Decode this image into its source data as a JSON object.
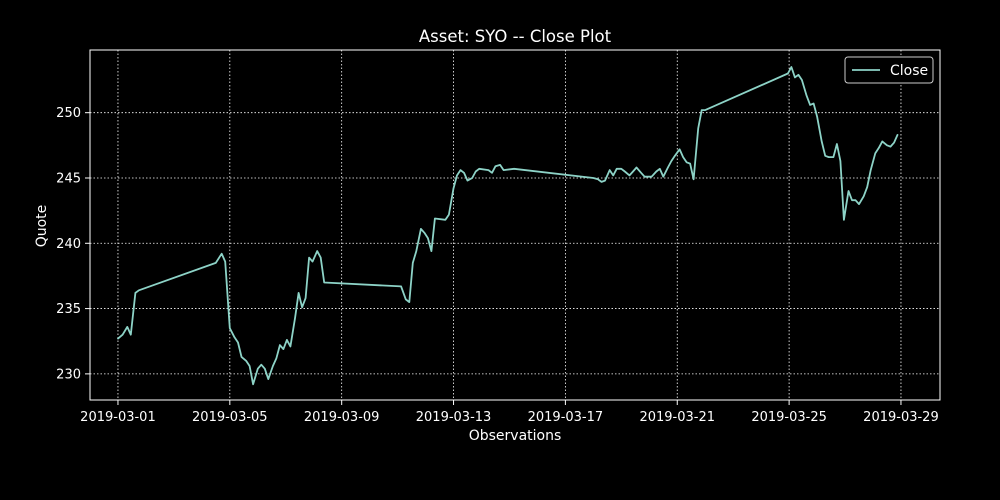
{
  "chart_data": {
    "type": "line",
    "title": "Asset: SYO -- Close Plot",
    "xlabel": "Observations",
    "ylabel": "Quote",
    "x_tick_labels": [
      "2019-03-01",
      "2019-03-05",
      "2019-03-09",
      "2019-03-13",
      "2019-03-17",
      "2019-03-21",
      "2019-03-25",
      "2019-03-29"
    ],
    "y_tick_labels": [
      "230",
      "235",
      "240",
      "245",
      "250"
    ],
    "xlim": [
      "2019-02-28 00:00",
      "2019-03-30 09:30"
    ],
    "ylim": [
      228,
      254.8
    ],
    "grid": true,
    "legend_position": "top-right",
    "colors": {
      "background": "#000000",
      "line": "#8dd3c7",
      "grid": "#ffffff",
      "text": "#ffffff"
    },
    "series": [
      {
        "name": "Close",
        "points": [
          [
            "2019-03-01 00:00",
            232.7
          ],
          [
            "2019-03-01 04:00",
            233.0
          ],
          [
            "2019-03-01 08:00",
            233.6
          ],
          [
            "2019-03-01 11:00",
            233.0
          ],
          [
            "2019-03-01 15:00",
            236.2
          ],
          [
            "2019-03-01 18:00",
            236.4
          ],
          [
            "2019-03-04 12:00",
            238.5
          ],
          [
            "2019-03-04 17:00",
            239.2
          ],
          [
            "2019-03-04 20:00",
            238.6
          ],
          [
            "2019-03-05 00:00",
            233.5
          ],
          [
            "2019-03-05 04:00",
            232.8
          ],
          [
            "2019-03-05 07:00",
            232.4
          ],
          [
            "2019-03-05 10:00",
            231.3
          ],
          [
            "2019-03-05 14:00",
            231.0
          ],
          [
            "2019-03-05 17:00",
            230.6
          ],
          [
            "2019-03-05 20:00",
            229.2
          ],
          [
            "2019-03-06 00:00",
            230.4
          ],
          [
            "2019-03-06 03:00",
            230.7
          ],
          [
            "2019-03-06 06:00",
            230.4
          ],
          [
            "2019-03-06 09:00",
            229.6
          ],
          [
            "2019-03-06 13:00",
            230.6
          ],
          [
            "2019-03-06 16:00",
            231.2
          ],
          [
            "2019-03-06 19:00",
            232.2
          ],
          [
            "2019-03-06 22:00",
            231.9
          ],
          [
            "2019-03-07 01:00",
            232.6
          ],
          [
            "2019-03-07 04:00",
            232.1
          ],
          [
            "2019-03-07 08:00",
            234.3
          ],
          [
            "2019-03-07 11:00",
            236.2
          ],
          [
            "2019-03-07 14:00",
            235.1
          ],
          [
            "2019-03-07 17:00",
            235.8
          ],
          [
            "2019-03-07 20:00",
            238.9
          ],
          [
            "2019-03-07 23:00",
            238.6
          ],
          [
            "2019-03-08 03:00",
            239.4
          ],
          [
            "2019-03-08 06:00",
            238.9
          ],
          [
            "2019-03-08 09:00",
            237.0
          ],
          [
            "2019-03-11 03:00",
            236.7
          ],
          [
            "2019-03-11 07:00",
            235.7
          ],
          [
            "2019-03-11 10:00",
            235.5
          ],
          [
            "2019-03-11 13:00",
            238.5
          ],
          [
            "2019-03-11 16:00",
            239.4
          ],
          [
            "2019-03-11 20:00",
            241.1
          ],
          [
            "2019-03-11 23:00",
            240.8
          ],
          [
            "2019-03-12 02:00",
            240.4
          ],
          [
            "2019-03-12 05:00",
            239.4
          ],
          [
            "2019-03-12 08:00",
            241.9
          ],
          [
            "2019-03-12 17:00",
            241.8
          ],
          [
            "2019-03-12 20:00",
            242.2
          ],
          [
            "2019-03-13 00:00",
            244.2
          ],
          [
            "2019-03-13 03:00",
            245.2
          ],
          [
            "2019-03-13 06:00",
            245.6
          ],
          [
            "2019-03-13 09:00",
            245.4
          ],
          [
            "2019-03-13 12:00",
            244.8
          ],
          [
            "2019-03-13 16:00",
            245.0
          ],
          [
            "2019-03-13 19:00",
            245.5
          ],
          [
            "2019-03-13 22:00",
            245.7
          ],
          [
            "2019-03-14 06:00",
            245.6
          ],
          [
            "2019-03-14 09:00",
            245.4
          ],
          [
            "2019-03-14 12:00",
            245.9
          ],
          [
            "2019-03-14 16:00",
            246.0
          ],
          [
            "2019-03-14 19:00",
            245.6
          ],
          [
            "2019-03-15 04:00",
            245.7
          ],
          [
            "2019-03-18 00:00",
            245.0
          ],
          [
            "2019-03-18 04:00",
            244.9
          ],
          [
            "2019-03-18 07:00",
            244.7
          ],
          [
            "2019-03-18 10:00",
            244.8
          ],
          [
            "2019-03-18 14:00",
            245.6
          ],
          [
            "2019-03-18 17:00",
            245.2
          ],
          [
            "2019-03-18 20:00",
            245.7
          ],
          [
            "2019-03-19 00:00",
            245.7
          ],
          [
            "2019-03-19 03:00",
            245.5
          ],
          [
            "2019-03-19 07:00",
            245.2
          ],
          [
            "2019-03-19 10:00",
            245.5
          ],
          [
            "2019-03-19 13:00",
            245.8
          ],
          [
            "2019-03-19 17:00",
            245.4
          ],
          [
            "2019-03-19 20:00",
            245.1
          ],
          [
            "2019-03-20 02:00",
            245.1
          ],
          [
            "2019-03-20 06:00",
            245.5
          ],
          [
            "2019-03-20 09:00",
            245.7
          ],
          [
            "2019-03-20 12:00",
            245.1
          ],
          [
            "2019-03-20 16:00",
            245.8
          ],
          [
            "2019-03-20 19:00",
            246.3
          ],
          [
            "2019-03-20 22:00",
            246.7
          ],
          [
            "2019-03-21 02:00",
            247.2
          ],
          [
            "2019-03-21 05:00",
            246.6
          ],
          [
            "2019-03-21 08:00",
            246.2
          ],
          [
            "2019-03-21 11:00",
            246.1
          ],
          [
            "2019-03-21 14:00",
            244.9
          ],
          [
            "2019-03-21 18:00",
            248.8
          ],
          [
            "2019-03-21 21:00",
            250.2
          ],
          [
            "2019-03-22 00:00",
            250.2
          ],
          [
            "2019-03-24 23:00",
            253.0
          ],
          [
            "2019-03-25 02:00",
            253.5
          ],
          [
            "2019-03-25 05:00",
            252.7
          ],
          [
            "2019-03-25 08:00",
            252.9
          ],
          [
            "2019-03-25 11:00",
            252.5
          ],
          [
            "2019-03-25 15:00",
            251.3
          ],
          [
            "2019-03-25 18:00",
            250.6
          ],
          [
            "2019-03-25 21:00",
            250.7
          ],
          [
            "2019-03-26 00:00",
            249.7
          ],
          [
            "2019-03-26 04:00",
            247.8
          ],
          [
            "2019-03-26 07:00",
            246.7
          ],
          [
            "2019-03-26 10:00",
            246.6
          ],
          [
            "2019-03-26 14:00",
            246.6
          ],
          [
            "2019-03-26 17:00",
            247.6
          ],
          [
            "2019-03-26 20:00",
            246.3
          ],
          [
            "2019-03-26 23:00",
            241.8
          ],
          [
            "2019-03-27 03:00",
            244.0
          ],
          [
            "2019-03-27 06:00",
            243.3
          ],
          [
            "2019-03-27 09:00",
            243.3
          ],
          [
            "2019-03-27 12:00",
            243.0
          ],
          [
            "2019-03-27 16:00",
            243.6
          ],
          [
            "2019-03-27 19:00",
            244.3
          ],
          [
            "2019-03-27 22:00",
            245.6
          ],
          [
            "2019-03-28 02:00",
            246.9
          ],
          [
            "2019-03-28 05:00",
            247.3
          ],
          [
            "2019-03-28 08:00",
            247.8
          ],
          [
            "2019-03-28 12:00",
            247.5
          ],
          [
            "2019-03-28 15:00",
            247.4
          ],
          [
            "2019-03-28 18:00",
            247.7
          ],
          [
            "2019-03-28 21:00",
            248.3
          ]
        ]
      }
    ]
  }
}
